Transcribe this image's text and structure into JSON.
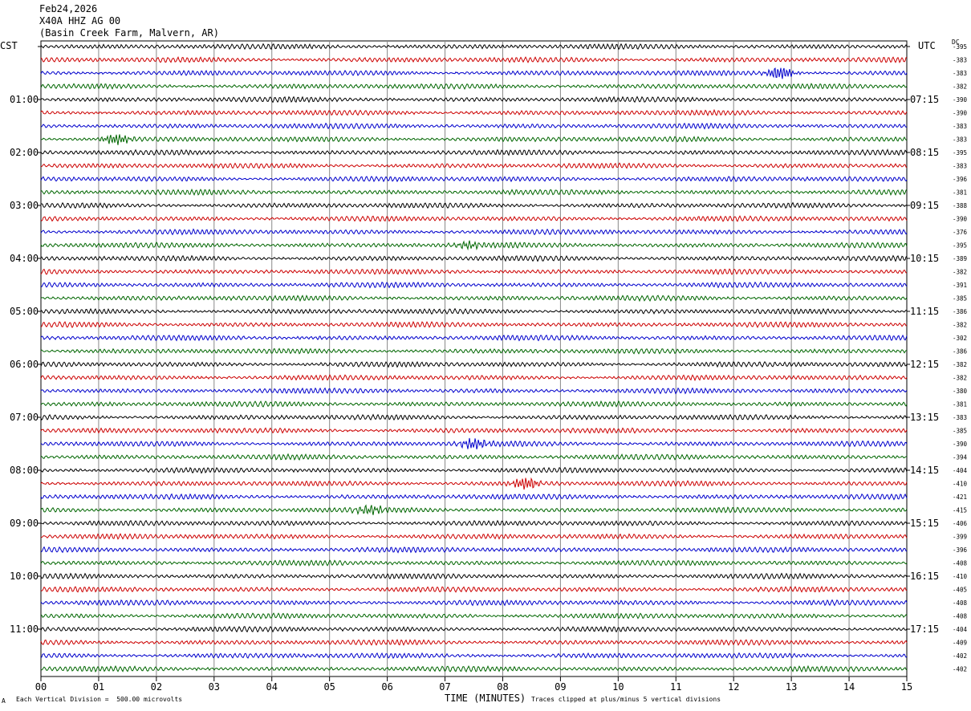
{
  "header": {
    "date": "Feb24,2026",
    "station": "X40A HHZ AG 00",
    "location": "(Basin Creek Farm, Malvern, AR)"
  },
  "left_tz": "CST",
  "right_tz": "UTC",
  "dc_label": "DC",
  "footer": {
    "scale": "Each Vertical Division =  500.00 microvolts",
    "xlabel": "TIME (MINUTES)",
    "clip": "Traces clipped at plus/minus 5 vertical divisions",
    "corner_mark": "A"
  },
  "colors": {
    "trace_cycle": [
      "#000000",
      "#cc0000",
      "#0000cc",
      "#006600"
    ],
    "grid": "#888888"
  },
  "chart_data": {
    "type": "line",
    "title": "",
    "xlabel": "TIME (MINUTES)",
    "x_ticks": [
      "00",
      "01",
      "02",
      "03",
      "04",
      "05",
      "06",
      "07",
      "08",
      "09",
      "10",
      "11",
      "12",
      "13",
      "14",
      "15"
    ],
    "xlim": [
      0,
      15
    ],
    "traces_per_hour": 4,
    "left_hour_labels": [
      "01:00",
      "02:00",
      "03:00",
      "04:00",
      "05:00",
      "06:00",
      "07:00",
      "08:00",
      "09:00",
      "10:00",
      "11:00"
    ],
    "right_hour_labels": [
      "07:15",
      "08:15",
      "09:15",
      "10:15",
      "11:15",
      "12:15",
      "13:15",
      "14:15",
      "15:15",
      "16:15",
      "17:15"
    ],
    "dc_offsets": [
      -395,
      -383,
      -383,
      -382,
      -390,
      -390,
      -383,
      -383,
      -395,
      -383,
      -396,
      -381,
      -388,
      -390,
      -376,
      -395,
      -389,
      -382,
      -391,
      -385,
      -386,
      -382,
      -302,
      -386,
      -382,
      -382,
      -380,
      -381,
      -383,
      -385,
      -390,
      -394,
      -404,
      -410,
      -421,
      -415,
      -406,
      -399,
      -396,
      -408,
      -410,
      -405,
      -408,
      -408,
      -404,
      -409,
      -402,
      -402
    ],
    "events": [
      {
        "trace": 7,
        "minute": 1.3,
        "amp": 0.55
      },
      {
        "trace": 15,
        "minute": 7.4,
        "amp": 0.35
      },
      {
        "trace": 30,
        "minute": 7.5,
        "amp": 0.55
      },
      {
        "trace": 33,
        "minute": 8.4,
        "amp": 0.6
      },
      {
        "trace": 35,
        "minute": 5.7,
        "amp": 0.45
      },
      {
        "trace": 2,
        "minute": 12.8,
        "amp": 0.7
      }
    ]
  }
}
